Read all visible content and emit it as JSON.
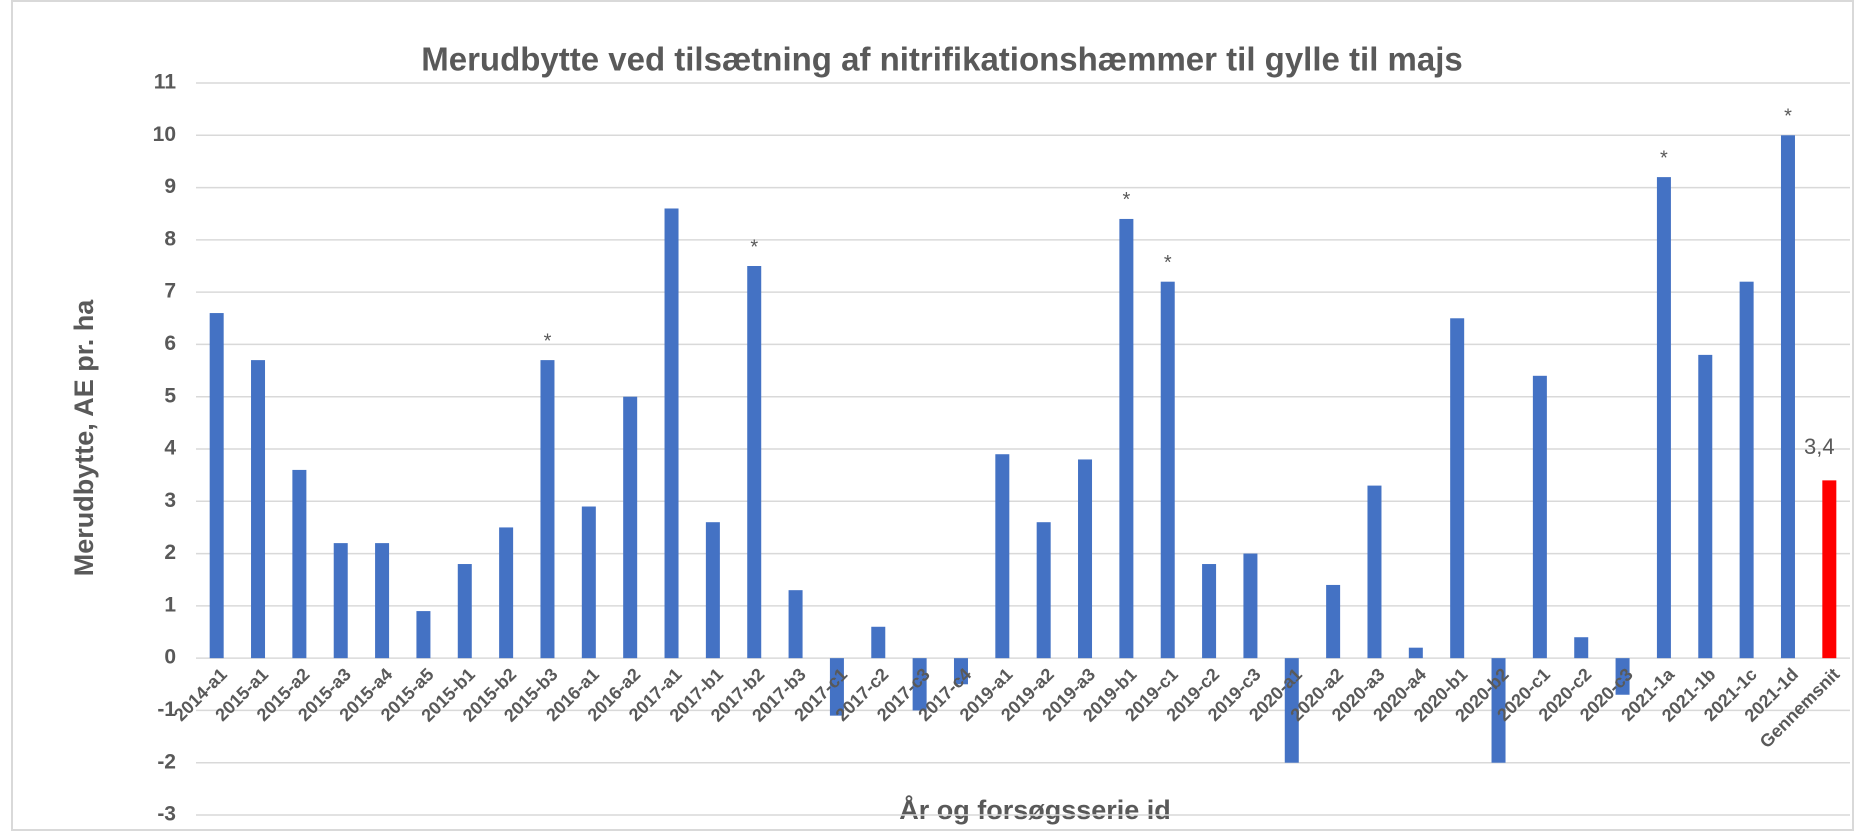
{
  "chart_data": {
    "type": "bar",
    "title": "Merudbytte ved tilsætning af nitrifikationshæmmer til gylle til majs",
    "y_axis_label": "Merudbytte, AE pr. ha",
    "x_axis_label": "År og forsøgsserie id",
    "categories": [
      "2014-a1",
      "2015-a1",
      "2015-a2",
      "2015-a3",
      "2015-a4",
      "2015-a5",
      "2015-b1",
      "2015-b2",
      "2015-b3",
      "2016-a1",
      "2016-a2",
      "2017-a1",
      "2017-b1",
      "2017-b2",
      "2017-b3",
      "2017-c1",
      "2017-c2",
      "2017-c3",
      "2017-c4",
      "2019-a1",
      "2019-a2",
      "2019-a3",
      "2019-b1",
      "2019-c1",
      "2019-c2",
      "2019-c3",
      "2020-a1",
      "2020-a2",
      "2020-a3",
      "2020-a4",
      "2020-b1",
      "2020-b2",
      "2020-c1",
      "2020-c2",
      "2020-c3",
      "2021-1a",
      "2021-1b",
      "2021-1c",
      "2021-1d",
      "Gennemsnit"
    ],
    "values": [
      6.6,
      5.7,
      3.6,
      2.2,
      2.2,
      0.9,
      1.8,
      2.5,
      5.7,
      2.9,
      5.0,
      8.6,
      2.6,
      7.5,
      1.3,
      -1.1,
      0.6,
      -1.0,
      -0.5,
      3.9,
      2.6,
      3.8,
      8.4,
      7.2,
      1.8,
      2.0,
      -2.0,
      1.4,
      3.3,
      0.2,
      6.5,
      -2.0,
      5.4,
      0.4,
      -0.7,
      9.2,
      5.8,
      7.2,
      10.0,
      3.4
    ],
    "value_labels": [
      null,
      null,
      null,
      null,
      null,
      null,
      null,
      null,
      null,
      null,
      null,
      null,
      null,
      null,
      null,
      null,
      null,
      null,
      null,
      null,
      null,
      null,
      null,
      null,
      null,
      null,
      null,
      null,
      null,
      null,
      null,
      null,
      null,
      null,
      null,
      null,
      null,
      null,
      null,
      "3,4"
    ],
    "significance": [
      null,
      null,
      null,
      null,
      null,
      null,
      null,
      null,
      "*",
      null,
      null,
      null,
      null,
      "*",
      null,
      null,
      null,
      null,
      null,
      null,
      null,
      null,
      "*",
      "*",
      null,
      null,
      null,
      null,
      null,
      null,
      null,
      null,
      null,
      null,
      null,
      "*",
      null,
      null,
      "*",
      null
    ],
    "colors": [
      "#4472c4",
      "#4472c4",
      "#4472c4",
      "#4472c4",
      "#4472c4",
      "#4472c4",
      "#4472c4",
      "#4472c4",
      "#4472c4",
      "#4472c4",
      "#4472c4",
      "#4472c4",
      "#4472c4",
      "#4472c4",
      "#4472c4",
      "#4472c4",
      "#4472c4",
      "#4472c4",
      "#4472c4",
      "#4472c4",
      "#4472c4",
      "#4472c4",
      "#4472c4",
      "#4472c4",
      "#4472c4",
      "#4472c4",
      "#4472c4",
      "#4472c4",
      "#4472c4",
      "#4472c4",
      "#4472c4",
      "#4472c4",
      "#4472c4",
      "#4472c4",
      "#4472c4",
      "#4472c4",
      "#4472c4",
      "#4472c4",
      "#4472c4",
      "#ff0000"
    ],
    "ylim": [
      -3,
      11
    ],
    "yticks": [
      -3,
      -2,
      -1,
      0,
      1,
      2,
      3,
      4,
      5,
      6,
      7,
      8,
      9,
      10,
      11
    ],
    "grid": true
  }
}
